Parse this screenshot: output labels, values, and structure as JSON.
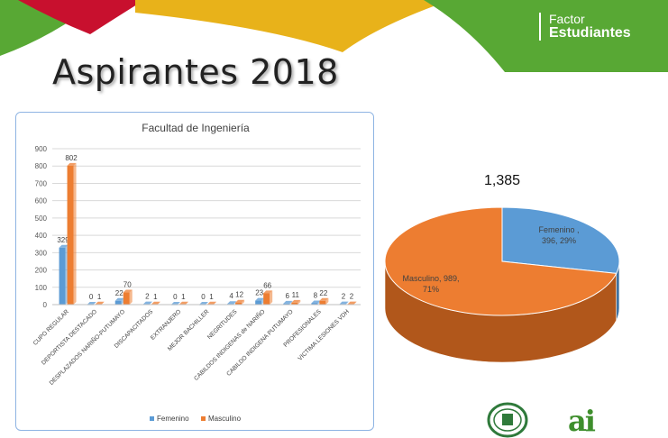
{
  "brand": {
    "line1": "Factor",
    "line2": "Estudiantes"
  },
  "slide": {
    "title": "Aspirantes 2018"
  },
  "colors": {
    "femenino": "#5b9bd5",
    "masculino": "#ed7d31",
    "banner_red": "#c8102e",
    "banner_gold": "#e8b21a",
    "banner_green": "#58a834"
  },
  "chart_data": [
    {
      "type": "bar",
      "title": "Facultad de Ingeniería",
      "categories": [
        "CUPO REGULAR",
        "DEPORTISTA DESTACADO",
        "DESPLAZADOS NARIÑO-PUTUMAYO",
        "DISCAPACITADOS",
        "EXTRANJERO",
        "MEJOR BACHILLER",
        "NEGRITUDES",
        "CABILDOS INDIGENAS de NARIÑO",
        "CABILDO INDIGENA PUTUMAYO",
        "PROFESIONALES",
        "VICTIMA LESIONES VDH"
      ],
      "series": [
        {
          "name": "Femenino",
          "values": [
            329,
            0,
            22,
            2,
            0,
            0,
            4,
            23,
            6,
            8,
            2
          ]
        },
        {
          "name": "Masculino",
          "values": [
            802,
            1,
            70,
            1,
            1,
            1,
            12,
            66,
            11,
            22,
            2
          ]
        }
      ],
      "ylim": [
        0,
        900
      ],
      "yticks": [
        0,
        100,
        200,
        300,
        400,
        500,
        600,
        700,
        800,
        900
      ],
      "grid": true,
      "legend": "bottom"
    },
    {
      "type": "pie",
      "title": "1,385",
      "slices": [
        {
          "name": "Femenino",
          "value": 396,
          "percent": "29%",
          "label_line1": "Femenino ,",
          "label_line2": "396, 29%"
        },
        {
          "name": "Masculino",
          "value": 989,
          "percent": "71%",
          "label_line1": "Masculino, 989,",
          "label_line2": "71%"
        }
      ]
    }
  ]
}
